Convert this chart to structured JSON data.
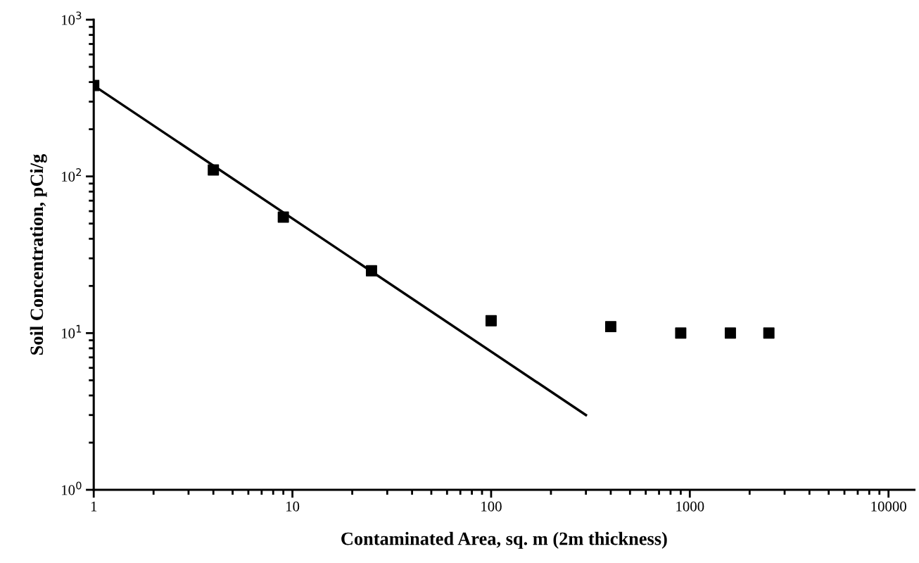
{
  "chart_data": {
    "type": "scatter",
    "xlabel": "Contaminated Area, sq. m (2m thickness)",
    "ylabel": "Soil Concentration, pCi/g",
    "log": "xy",
    "xlim": [
      1,
      13500
    ],
    "ylim": [
      1,
      1000
    ],
    "xticks": [
      1,
      10,
      100,
      1000,
      10000
    ],
    "yticks": [
      {
        "value": 1,
        "label": "10$^{0}$"
      },
      {
        "value": 10,
        "label": "10$^{1}$"
      },
      {
        "value": 100,
        "label": "10$^{2}$"
      },
      {
        "value": 1000,
        "label": "10$^{3}$"
      }
    ],
    "grid": false,
    "legend": false,
    "series": [
      {
        "marker": "square",
        "color": "#000000",
        "x": [
          1,
          4,
          9,
          25,
          100,
          400,
          900,
          1600,
          2500
        ],
        "values": [
          380,
          110,
          55,
          25,
          12,
          11,
          10,
          10,
          10
        ]
      },
      {
        "type": "line",
        "marker": "none",
        "line_style": "solid",
        "color": "#000000",
        "x": [
          1,
          300
        ],
        "values": [
          380,
          3
        ]
      }
    ]
  }
}
